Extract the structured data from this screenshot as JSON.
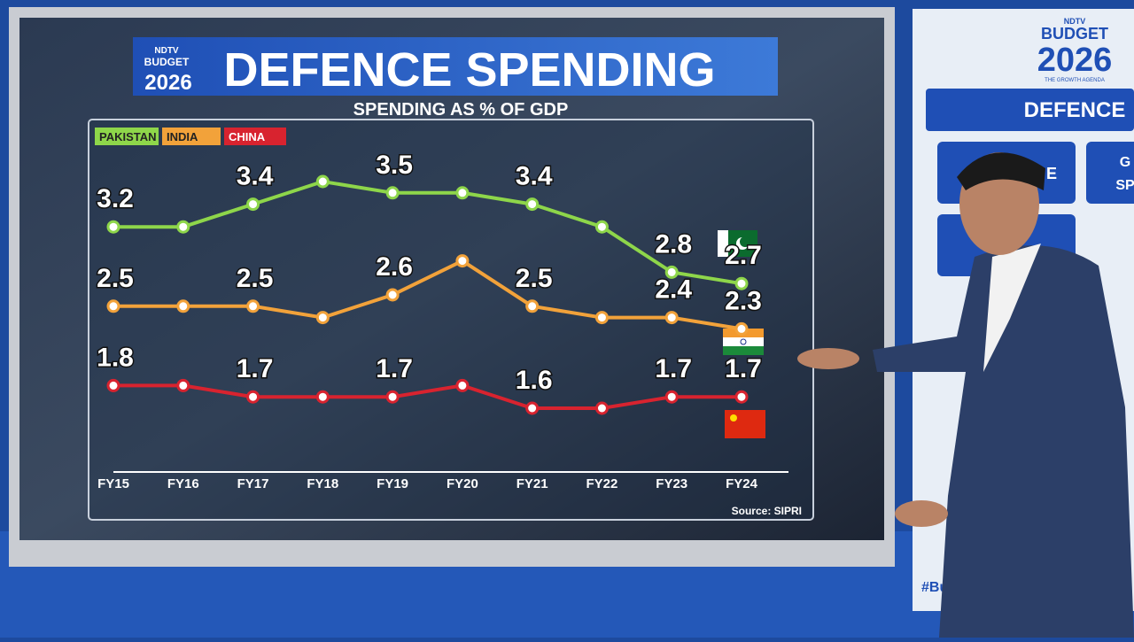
{
  "logo": {
    "brand": "NDTV",
    "event": "BUDGET",
    "year": "2026"
  },
  "chart_data": {
    "type": "line",
    "title": "DEFENCE SPENDING",
    "subtitle": "SPENDING AS % OF GDP",
    "categories": [
      "FY15",
      "FY16",
      "FY17",
      "FY18",
      "FY19",
      "FY20",
      "FY21",
      "FY22",
      "FY23",
      "FY24"
    ],
    "series": [
      {
        "name": "PAKISTAN",
        "color": "#8ed64a",
        "values": [
          3.2,
          3.2,
          3.4,
          3.6,
          3.5,
          3.5,
          3.4,
          3.2,
          2.8,
          2.7
        ],
        "value_labels": [
          "3.2",
          null,
          "3.4",
          null,
          "3.5",
          null,
          "3.4",
          null,
          "2.8",
          "2.7"
        ]
      },
      {
        "name": "INDIA",
        "color": "#f2a23a",
        "values": [
          2.5,
          2.5,
          2.5,
          2.4,
          2.6,
          2.9,
          2.5,
          2.4,
          2.4,
          2.3
        ],
        "value_labels": [
          "2.5",
          null,
          "2.5",
          null,
          "2.6",
          null,
          "2.5",
          null,
          "2.4",
          "2.3"
        ]
      },
      {
        "name": "CHINA",
        "color": "#d8232f",
        "values": [
          1.8,
          1.8,
          1.7,
          1.7,
          1.7,
          1.8,
          1.6,
          1.6,
          1.7,
          1.7
        ],
        "value_labels": [
          "1.8",
          null,
          "1.7",
          null,
          "1.7",
          null,
          "1.6",
          null,
          "1.7",
          "1.7"
        ]
      }
    ],
    "source": "Source: SIPRI"
  },
  "side_panel": {
    "brand": "NDTV",
    "event": "BUDGET",
    "year": "2026",
    "tagline": "THE GROWTH AGENDA",
    "heading": "DEFENCE",
    "buttons": [
      "E",
      "G",
      "SP"
    ],
    "hashtag": "#Bu"
  }
}
